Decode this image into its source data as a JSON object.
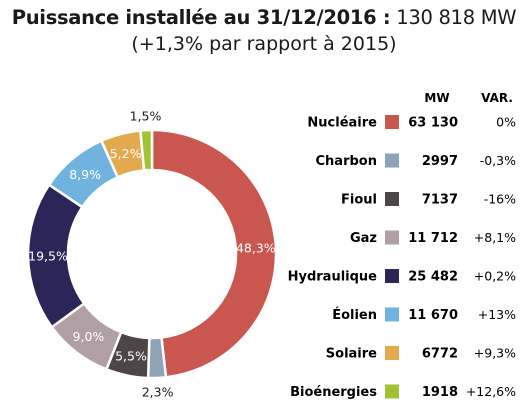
{
  "header": {
    "title_bold": "Puissance installée au 31/12/2016 :",
    "title_value": "130 818 MW",
    "subtitle": "(+1,3% par rapport à 2015)"
  },
  "legend_headers": {
    "mw": "MW",
    "var": "VAR."
  },
  "chart_data": {
    "type": "pie",
    "donut": true,
    "title": "Puissance installée au 31/12/2016 : 130 818 MW",
    "subtitle": "(+1,3% par rapport à 2015)",
    "total_mw": 130818,
    "slices": [
      {
        "name": "Nucléaire",
        "percent": 48.3,
        "percent_label": "48,3%",
        "mw": 63130,
        "mw_label": "63 130",
        "var": "0%",
        "color": "#c9564f",
        "label_inside": true
      },
      {
        "name": "Charbon",
        "percent": 2.3,
        "percent_label": "2,3%",
        "mw": 2997,
        "mw_label": "2997",
        "var": "-0,3%",
        "color": "#8ea3b8",
        "label_inside": false
      },
      {
        "name": "Fioul",
        "percent": 5.5,
        "percent_label": "5,5%",
        "mw": 7137,
        "mw_label": "7137",
        "var": "-16%",
        "color": "#4d4649",
        "label_inside": true
      },
      {
        "name": "Gaz",
        "percent": 9.0,
        "percent_label": "9,0%",
        "mw": 11712,
        "mw_label": "11 712",
        "var": "+8,1%",
        "color": "#b09fa4",
        "label_inside": true
      },
      {
        "name": "Hydraulique",
        "percent": 19.5,
        "percent_label": "19,5%",
        "mw": 25482,
        "mw_label": "25 482",
        "var": "+0,2%",
        "color": "#2b2558",
        "label_inside": true
      },
      {
        "name": "Éolien",
        "percent": 8.9,
        "percent_label": "8,9%",
        "mw": 11670,
        "mw_label": "11 670",
        "var": "+13%",
        "color": "#6fb3de",
        "label_inside": true
      },
      {
        "name": "Solaire",
        "percent": 5.2,
        "percent_label": "5,2%",
        "mw": 6772,
        "mw_label": "6772",
        "var": "+9,3%",
        "color": "#e3a94f",
        "label_inside": true
      },
      {
        "name": "Bioénergies",
        "percent": 1.5,
        "percent_label": "1,5%",
        "mw": 1918,
        "mw_label": "1918",
        "var": "+12,6%",
        "color": "#a2c236",
        "label_inside": false
      }
    ]
  }
}
